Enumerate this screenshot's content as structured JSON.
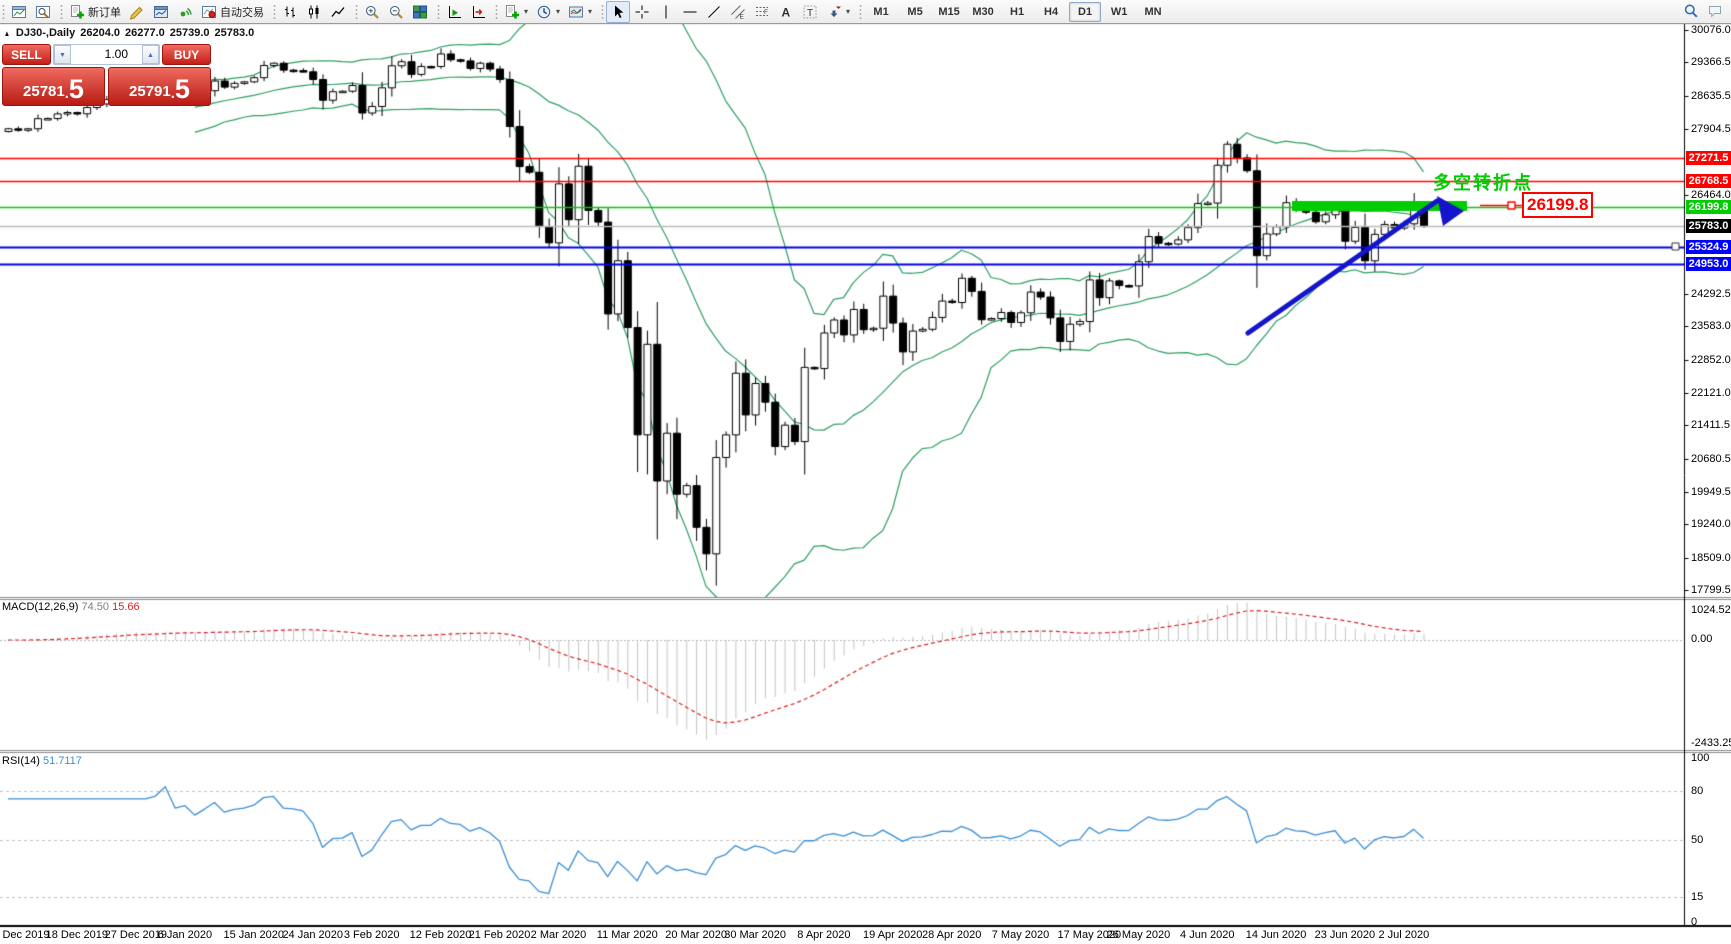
{
  "title": {
    "symbol": "DJ30-,Daily",
    "open": "26204.0",
    "high": "26277.0",
    "low": "25739.0",
    "close": "25783.0"
  },
  "toolbar": {
    "groups": [
      {
        "items": [
          {
            "name": "new-chart-button",
            "icon": "winchart"
          },
          {
            "name": "profiles-button",
            "icon": "winsearch"
          }
        ]
      },
      {
        "items": [
          {
            "name": "new-order-button",
            "icon": "docplus",
            "label": "新订单"
          },
          {
            "name": "metaeditor-button",
            "icon": "editor"
          },
          {
            "name": "terminal-button",
            "icon": "terminal"
          },
          {
            "name": "signals-button",
            "icon": "signals"
          },
          {
            "name": "autotrading-button",
            "icon": "autotrading",
            "label": "自动交易"
          }
        ]
      },
      {
        "items": [
          {
            "name": "bar-chart-button",
            "icon": "bars"
          },
          {
            "name": "candlestick-button",
            "icon": "candles"
          },
          {
            "name": "line-chart-button",
            "icon": "linechart"
          }
        ]
      },
      {
        "items": [
          {
            "name": "zoom-in-button",
            "icon": "zoomin"
          },
          {
            "name": "zoom-out-button",
            "icon": "zoomout"
          },
          {
            "name": "tile-windows-button",
            "icon": "tiles"
          }
        ]
      },
      {
        "items": [
          {
            "name": "auto-scroll-button",
            "icon": "autoscroll"
          },
          {
            "name": "chart-shift-button",
            "icon": "shift"
          }
        ]
      },
      {
        "items": [
          {
            "name": "indicators-button",
            "icon": "docplus",
            "caret": true
          },
          {
            "name": "periods-button",
            "icon": "clock",
            "caret": true
          },
          {
            "name": "templates-button",
            "icon": "template",
            "caret": true
          }
        ]
      },
      {
        "items": [
          {
            "name": "cursor-button",
            "icon": "cursor",
            "active": true
          },
          {
            "name": "crosshair-button",
            "icon": "crosshair"
          },
          {
            "name": "vertical-line-button",
            "icon": "vline"
          },
          {
            "name": "horizontal-line-button",
            "icon": "hline"
          },
          {
            "name": "trendline-button",
            "icon": "trendline"
          },
          {
            "name": "equidistant-channel-button",
            "icon": "channel"
          },
          {
            "name": "fibonacci-button",
            "icon": "fibo"
          },
          {
            "name": "text-button",
            "icon": "texta"
          },
          {
            "name": "text-label-button",
            "icon": "textt"
          },
          {
            "name": "arrows-button",
            "icon": "arrows",
            "caret": true
          }
        ]
      }
    ],
    "timeframes": [
      "M1",
      "M5",
      "M15",
      "M30",
      "H1",
      "H4",
      "D1",
      "W1",
      "MN"
    ],
    "active_timeframe": "D1",
    "right_icons": [
      {
        "name": "search-button",
        "icon": "search"
      },
      {
        "name": "chat-button",
        "icon": "chat"
      }
    ]
  },
  "trade_panel": {
    "sell_label": "SELL",
    "buy_label": "BUY",
    "volume": "1.00",
    "sell_price_main": "25781",
    "sell_price_big": "5",
    "buy_price_main": "25791",
    "buy_price_big": "5"
  },
  "price_scale": {
    "ticks": [
      "30076.0",
      "29366.5",
      "28635.5",
      "27904.5",
      "26464.0",
      "24292.5",
      "23583.0",
      "22852.0",
      "22121.0",
      "21411.5",
      "20680.5",
      "19949.5",
      "19240.0",
      "18509.0",
      "17799.5"
    ],
    "tick_values": [
      30076.0,
      29366.5,
      28635.5,
      27904.5,
      26464.0,
      24292.5,
      23583.0,
      22852.0,
      22121.0,
      21411.5,
      20680.5,
      19949.5,
      19240.0,
      18509.0,
      17799.5
    ]
  },
  "price_tags": [
    {
      "text": "27271.5",
      "price": 27271.5,
      "bg": "#FF0000",
      "fg": "#FFFFFF"
    },
    {
      "text": "26768.5",
      "price": 26768.5,
      "bg": "#FF0000",
      "fg": "#FFFFFF"
    },
    {
      "text": "26199.8",
      "price": 26199.8,
      "bg": "#00CC00",
      "fg": "#FFFFFF"
    },
    {
      "text": "25783.0",
      "price": 25783.0,
      "bg": "#000000",
      "fg": "#FFFFFF"
    },
    {
      "text": "25324.9",
      "price": 25324.9,
      "bg": "#0000FF",
      "fg": "#FFFFFF"
    },
    {
      "text": "24953.0",
      "price": 24953.0,
      "bg": "#0000FF",
      "fg": "#FFFFFF"
    }
  ],
  "hlines": [
    {
      "price": 27271.5,
      "color": "#FF0000",
      "w": 1.4
    },
    {
      "price": 26768.5,
      "color": "#FF0000",
      "w": 1.4
    },
    {
      "price": 26199.8,
      "color": "#00CC00",
      "w": 1.4
    },
    {
      "price": 25783.0,
      "color": "#BBBBBB",
      "w": 1.4
    },
    {
      "price": 25324.9,
      "color": "#0000E6",
      "w": 2
    },
    {
      "price": 24953.0,
      "color": "#0000E6",
      "w": 2
    }
  ],
  "annotations": {
    "turning_text": {
      "text": "多空转折点",
      "color": "#00CC00"
    },
    "callout": {
      "text": "26199.8",
      "color": "#FF0000"
    },
    "highlight_bar_color": "#00CC00",
    "arrow_color": "#1414CC"
  },
  "macd": {
    "name": "MACD(12,26,9)",
    "main_value": "74.50",
    "signal_value": "15.66",
    "scale_labels": [
      "1024.52",
      "0.00",
      "-2433.25"
    ],
    "main_color": "#808080",
    "signal_color": "#DD2222",
    "hist_color": "#C4C4C4"
  },
  "rsi": {
    "name": "RSI(14)",
    "value": "51.7117",
    "line_color": "#3A8FD6",
    "scale_labels": [
      "100",
      "80",
      "50",
      "15",
      "0"
    ],
    "scale_values": [
      100,
      80,
      50,
      15,
      0
    ],
    "dashed_levels": [
      80,
      50,
      15
    ]
  },
  "timeline": {
    "ticks": [
      {
        "label": "Dec 2019",
        "i": 0
      },
      {
        "label": "18 Dec 2019",
        "i": 7
      },
      {
        "label": "27 Dec 2019",
        "i": 13
      },
      {
        "label": "6 Jan 2020",
        "i": 18
      },
      {
        "label": "15 Jan 2020",
        "i": 25
      },
      {
        "label": "24 Jan 2020",
        "i": 31
      },
      {
        "label": "3 Feb 2020",
        "i": 37
      },
      {
        "label": "12 Feb 2020",
        "i": 44
      },
      {
        "label": "21 Feb 2020",
        "i": 50
      },
      {
        "label": "2 Mar 2020",
        "i": 56
      },
      {
        "label": "11 Mar 2020",
        "i": 63
      },
      {
        "label": "20 Mar 2020",
        "i": 70
      },
      {
        "label": "30 Mar 2020",
        "i": 76
      },
      {
        "label": "8 Apr 2020",
        "i": 83
      },
      {
        "label": "19 Apr 2020",
        "i": 90
      },
      {
        "label": "28 Apr 2020",
        "i": 96
      },
      {
        "label": "7 May 2020",
        "i": 103
      },
      {
        "label": "17 May 2020",
        "i": 110
      },
      {
        "label": "26 May 2020",
        "i": 115
      },
      {
        "label": "4 Jun 2020",
        "i": 122
      },
      {
        "label": "14 Jun 2020",
        "i": 129
      },
      {
        "label": "23 Jun 2020",
        "i": 136
      },
      {
        "label": "2 Jul 2020",
        "i": 142
      }
    ]
  },
  "chart_data": {
    "type": "candlestick",
    "symbol": "DJ30-",
    "period": "Daily",
    "first_open": 27850,
    "closes": [
      27910,
      27882,
      27911,
      28132,
      28135,
      28236,
      28267,
      28239,
      28377,
      28455,
      28551,
      28515,
      28621,
      28645,
      28462,
      28538,
      28869,
      28635,
      28703,
      28584,
      28745,
      28957,
      28824,
      28907,
      28939,
      29030,
      29298,
      29348,
      29196,
      29186,
      29160,
      28990,
      28536,
      28723,
      28734,
      28859,
      28256,
      28400,
      28808,
      29291,
      29380,
      29103,
      29277,
      29276,
      29551,
      29423,
      29398,
      29232,
      29348,
      29220,
      28992,
      27961,
      27081,
      26958,
      25767,
      25409,
      26703,
      25917,
      27090,
      26121,
      25865,
      23851,
      25018,
      23553,
      21201,
      23186,
      20189,
      21237,
      19899,
      20087,
      19174,
      18592,
      20705,
      21200,
      22552,
      21637,
      22327,
      21917,
      20944,
      21413,
      21053,
      22680,
      22654,
      23434,
      23719,
      23391,
      23950,
      23505,
      23538,
      24242,
      23651,
      23019,
      23476,
      23515,
      23775,
      24134,
      24102,
      24634,
      24346,
      23724,
      23750,
      23883,
      23665,
      23876,
      24331,
      24222,
      23765,
      23248,
      23626,
      23685,
      24597,
      24207,
      24576,
      24474,
      24465,
      24995,
      25548,
      25401,
      25383,
      25475,
      25743,
      26270,
      26282,
      27111,
      27572,
      27272,
      26990,
      25128,
      25605,
      25763,
      26290,
      26120,
      26080,
      25871,
      26025,
      26156,
      25445,
      25746,
      25016,
      25596,
      25813,
      25735,
      25827,
      26287,
      25783
    ],
    "last_bar": {
      "open": 26204,
      "high": 26277,
      "low": 25739,
      "close": 25783
    },
    "low_override": {
      "index": 71,
      "low": 18230
    },
    "indicators": [
      {
        "type": "BollingerBands",
        "period": 20,
        "deviation": 2,
        "color": "#2F9E64"
      },
      {
        "type": "MACD",
        "fast": 12,
        "slow": 26,
        "signal": 9
      },
      {
        "type": "RSI",
        "period": 14
      }
    ],
    "candle_up_fill": "#FFFFFF",
    "candle_down_fill": "#000000",
    "candle_border": "#000000"
  }
}
